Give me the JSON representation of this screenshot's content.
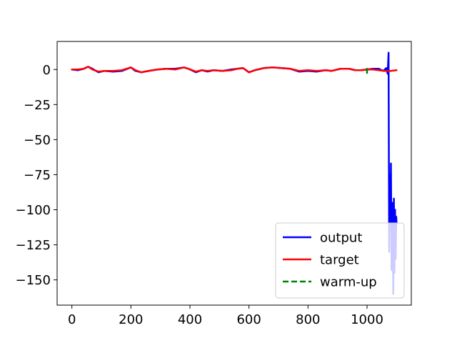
{
  "chart_data": {
    "type": "line",
    "title": "",
    "xlabel": "",
    "ylabel": "",
    "xlim": [
      -50,
      1150
    ],
    "ylim": [
      -168,
      20
    ],
    "grid": false,
    "legend_position": "lower-right",
    "x_ticks": [
      0,
      200,
      400,
      600,
      800,
      1000
    ],
    "x_tick_labels": [
      "0",
      "200",
      "400",
      "600",
      "800",
      "1000"
    ],
    "y_ticks": [
      0,
      -25,
      -50,
      -75,
      -100,
      -125,
      -150
    ],
    "y_tick_labels": [
      "0",
      "−25",
      "−50",
      "−75",
      "−100",
      "−125",
      "−150"
    ],
    "series": [
      {
        "name": "output",
        "color": "#0000ff",
        "style": "solid",
        "x": [
          0,
          20,
          40,
          55,
          70,
          90,
          110,
          140,
          170,
          200,
          215,
          235,
          260,
          290,
          320,
          350,
          380,
          395,
          420,
          440,
          460,
          480,
          510,
          540,
          560,
          580,
          600,
          620,
          650,
          680,
          710,
          740,
          770,
          800,
          830,
          860,
          880,
          910,
          940,
          960,
          980,
          1000,
          1020,
          1040,
          1055,
          1065,
          1070,
          1073,
          1075,
          1077,
          1079,
          1081,
          1083,
          1085,
          1087,
          1089,
          1091,
          1093,
          1095,
          1097,
          1099,
          1100
        ],
        "y": [
          0,
          -0.5,
          0.5,
          2,
          0.5,
          -2,
          -1,
          -1.5,
          -1,
          1.5,
          -1,
          -2,
          -1,
          0,
          0.5,
          0.5,
          1.5,
          0.5,
          -2,
          -0.5,
          -1.5,
          -0.5,
          -1,
          0,
          0.5,
          1,
          -2,
          -0.5,
          1,
          1.5,
          1,
          0.5,
          -1.5,
          -1,
          -1.5,
          -0.5,
          -1,
          0.5,
          0.5,
          -0.5,
          -0.5,
          0,
          0.5,
          0.5,
          -1,
          1,
          -3,
          12,
          -130,
          -75,
          -110,
          -67,
          -143,
          -95,
          -120,
          -160,
          -92,
          -145,
          -100,
          -135,
          -105,
          -110
        ]
      },
      {
        "name": "target",
        "color": "#ff0000",
        "style": "solid",
        "x": [
          0,
          20,
          40,
          55,
          70,
          90,
          110,
          140,
          170,
          200,
          215,
          235,
          260,
          290,
          320,
          350,
          380,
          395,
          420,
          440,
          460,
          480,
          510,
          540,
          560,
          580,
          600,
          620,
          650,
          680,
          710,
          740,
          770,
          800,
          830,
          860,
          880,
          910,
          940,
          960,
          980,
          1000,
          1020,
          1040,
          1060,
          1080,
          1100
        ],
        "y": [
          0,
          0,
          0.5,
          2,
          0,
          -1.5,
          -1,
          -1,
          -0.5,
          1.5,
          -0.5,
          -2,
          -1,
          0,
          0.5,
          0,
          1.5,
          0.5,
          -1.5,
          -0.5,
          -1,
          -0.5,
          -1,
          -0.5,
          0.5,
          1,
          -2,
          -0.5,
          1,
          1.5,
          1,
          0.5,
          -1,
          -0.5,
          -1,
          -0.5,
          -1,
          0.5,
          0.5,
          -0.5,
          -0.5,
          0,
          0,
          -0.5,
          -1,
          -1,
          -0.5
        ]
      },
      {
        "name": "warm-up",
        "color": "#008000",
        "style": "dashed",
        "x": [
          1000,
          1000
        ],
        "y": [
          -3,
          3
        ]
      }
    ]
  }
}
